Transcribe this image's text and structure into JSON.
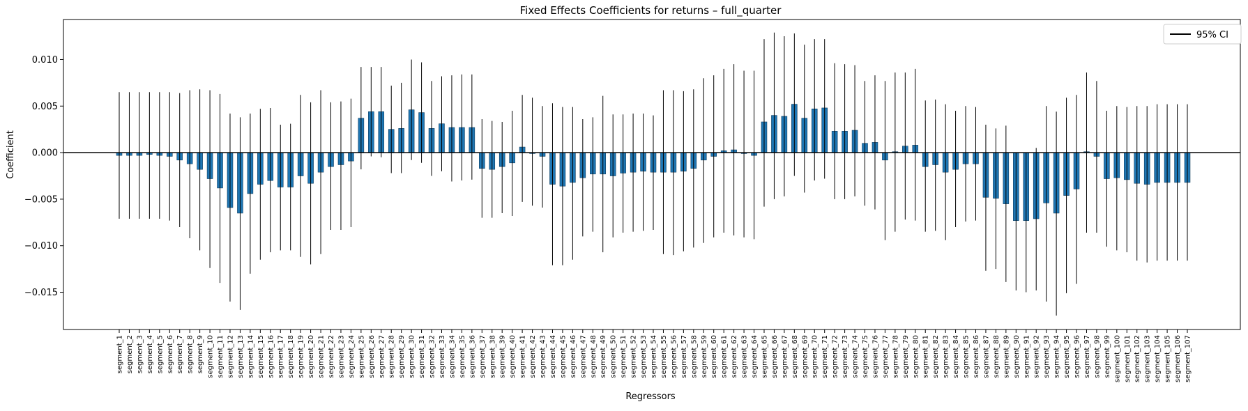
{
  "chart_data": {
    "type": "bar",
    "title": "Fixed Effects Coefficients for returns – full_quarter",
    "xlabel": "Regressors",
    "ylabel": "Coefficient",
    "ylim": [
      -0.019,
      0.0143
    ],
    "yticks": [
      -0.015,
      -0.01,
      -0.005,
      0.0,
      0.005,
      0.01
    ],
    "ytick_labels": [
      "−0.015",
      "−0.010",
      "−0.005",
      "0.000",
      "0.005",
      "0.010"
    ],
    "bar_color": "#1f77b4",
    "errorbar_color": "#000000",
    "zero_line": true,
    "legend": {
      "position": "top-right",
      "entries": [
        "95% CI"
      ]
    },
    "categories": [
      "segment_1",
      "segment_2",
      "segment_3",
      "segment_4",
      "segment_5",
      "segment_6",
      "segment_7",
      "segment_8",
      "segment_9",
      "segment_10",
      "segment_11",
      "segment_12",
      "segment_13",
      "segment_14",
      "segment_15",
      "segment_16",
      "segment_17",
      "segment_18",
      "segment_19",
      "segment_20",
      "segment_21",
      "segment_22",
      "segment_23",
      "segment_24",
      "segment_25",
      "segment_26",
      "segment_27",
      "segment_28",
      "segment_29",
      "segment_30",
      "segment_31",
      "segment_32",
      "segment_33",
      "segment_34",
      "segment_35",
      "segment_36",
      "segment_37",
      "segment_38",
      "segment_39",
      "segment_40",
      "segment_41",
      "segment_42",
      "segment_43",
      "segment_44",
      "segment_45",
      "segment_46",
      "segment_47",
      "segment_48",
      "segment_49",
      "segment_50",
      "segment_51",
      "segment_52",
      "segment_53",
      "segment_54",
      "segment_55",
      "segment_56",
      "segment_57",
      "segment_58",
      "segment_59",
      "segment_60",
      "segment_61",
      "segment_62",
      "segment_63",
      "segment_64",
      "segment_65",
      "segment_66",
      "segment_67",
      "segment_68",
      "segment_69",
      "segment_70",
      "segment_71",
      "segment_72",
      "segment_73",
      "segment_74",
      "segment_75",
      "segment_76",
      "segment_77",
      "segment_78",
      "segment_79",
      "segment_80",
      "segment_81",
      "segment_82",
      "segment_83",
      "segment_84",
      "segment_85",
      "segment_86",
      "segment_87",
      "segment_88",
      "segment_89",
      "segment_90",
      "segment_91",
      "segment_92",
      "segment_93",
      "segment_94",
      "segment_95",
      "segment_96",
      "segment_97",
      "segment_98",
      "segment_99",
      "segment_100",
      "segment_101",
      "segment_102",
      "segment_103",
      "segment_104",
      "segment_105",
      "segment_106",
      "segment_107"
    ],
    "values": [
      -0.0003,
      -0.0003,
      -0.0003,
      -0.0002,
      -0.0003,
      -0.0004,
      -0.0008,
      -0.0012,
      -0.0018,
      -0.0028,
      -0.0038,
      -0.0059,
      -0.0065,
      -0.0044,
      -0.0034,
      -0.003,
      -0.0037,
      -0.0037,
      -0.0025,
      -0.0033,
      -0.0021,
      -0.0015,
      -0.0013,
      -0.0009,
      0.0037,
      0.0044,
      0.0044,
      0.0025,
      0.0026,
      0.0046,
      0.0043,
      0.0026,
      0.0031,
      0.0027,
      0.0027,
      0.0027,
      -0.0017,
      -0.0018,
      -0.0015,
      -0.0011,
      0.0006,
      -0.0001,
      -0.0004,
      -0.0034,
      -0.0036,
      -0.0032,
      -0.0027,
      -0.0023,
      -0.0023,
      -0.0025,
      -0.0022,
      -0.0021,
      -0.002,
      -0.0021,
      -0.0021,
      -0.0021,
      -0.002,
      -0.0017,
      -0.0008,
      -0.0004,
      0.0002,
      0.0003,
      -0.0001,
      -0.0003,
      0.0033,
      0.004,
      0.0039,
      0.0052,
      0.0037,
      0.0047,
      0.0048,
      0.0023,
      0.0023,
      0.0024,
      0.001,
      0.0011,
      -0.0008,
      0.0001,
      0.0007,
      0.0008,
      -0.0015,
      -0.0013,
      -0.0021,
      -0.0018,
      -0.0012,
      -0.0012,
      -0.0048,
      -0.0049,
      -0.0055,
      -0.0073,
      -0.0073,
      -0.0071,
      -0.0054,
      -0.0065,
      -0.0046,
      -0.0039,
      0.0001,
      -0.0004,
      -0.0028,
      -0.0027,
      -0.0029,
      -0.0033,
      -0.0034,
      -0.0032,
      -0.0032,
      -0.0032,
      -0.0032
    ],
    "ci_lower": [
      -0.0071,
      -0.0071,
      -0.0071,
      -0.0071,
      -0.0071,
      -0.0073,
      -0.008,
      -0.0092,
      -0.0105,
      -0.0124,
      -0.014,
      -0.016,
      -0.0169,
      -0.013,
      -0.0115,
      -0.0107,
      -0.0105,
      -0.0105,
      -0.0112,
      -0.012,
      -0.0109,
      -0.0083,
      -0.0083,
      -0.008,
      -0.0018,
      -0.0004,
      -0.0005,
      -0.0022,
      -0.0022,
      -0.0008,
      -0.0011,
      -0.0025,
      -0.002,
      -0.0031,
      -0.003,
      -0.0029,
      -0.007,
      -0.007,
      -0.0065,
      -0.0068,
      -0.0053,
      -0.0057,
      -0.0059,
      -0.0121,
      -0.0121,
      -0.0115,
      -0.009,
      -0.0085,
      -0.0107,
      -0.0091,
      -0.0086,
      -0.0085,
      -0.0084,
      -0.0083,
      -0.0109,
      -0.011,
      -0.0106,
      -0.0102,
      -0.0097,
      -0.0091,
      -0.0086,
      -0.0089,
      -0.0091,
      -0.0093,
      -0.0058,
      -0.005,
      -0.0047,
      -0.0025,
      -0.0043,
      -0.003,
      -0.0028,
      -0.005,
      -0.005,
      -0.0047,
      -0.0057,
      -0.0061,
      -0.0094,
      -0.0085,
      -0.0072,
      -0.0073,
      -0.0085,
      -0.0084,
      -0.0094,
      -0.008,
      -0.0074,
      -0.0073,
      -0.0127,
      -0.0125,
      -0.0139,
      -0.0148,
      -0.015,
      -0.0148,
      -0.016,
      -0.0175,
      -0.0151,
      -0.0141,
      -0.0086,
      -0.0086,
      -0.0101,
      -0.0105,
      -0.0107,
      -0.0116,
      -0.0118,
      -0.0116,
      -0.0116,
      -0.0116,
      -0.0116
    ],
    "ci_upper": [
      0.0065,
      0.0065,
      0.0065,
      0.0065,
      0.0065,
      0.0065,
      0.0064,
      0.0067,
      0.0068,
      0.0067,
      0.0063,
      0.0042,
      0.0038,
      0.0042,
      0.0047,
      0.0048,
      0.003,
      0.0031,
      0.0062,
      0.0054,
      0.0067,
      0.0054,
      0.0055,
      0.0058,
      0.0092,
      0.0092,
      0.0092,
      0.0072,
      0.0075,
      0.01,
      0.0097,
      0.0077,
      0.0082,
      0.0083,
      0.0084,
      0.0084,
      0.0036,
      0.0034,
      0.0033,
      0.0045,
      0.0062,
      0.0059,
      0.005,
      0.0053,
      0.0049,
      0.0049,
      0.0036,
      0.0038,
      0.0061,
      0.0041,
      0.0041,
      0.0042,
      0.0042,
      0.004,
      0.0067,
      0.0067,
      0.0066,
      0.0068,
      0.008,
      0.0083,
      0.009,
      0.0095,
      0.0088,
      0.0088,
      0.0122,
      0.0129,
      0.0125,
      0.0128,
      0.0116,
      0.0122,
      0.0122,
      0.0096,
      0.0095,
      0.0094,
      0.0077,
      0.0083,
      0.0077,
      0.0086,
      0.0086,
      0.009,
      0.0056,
      0.0057,
      0.0052,
      0.0045,
      0.005,
      0.0049,
      0.003,
      0.0026,
      0.0029,
      0.0,
      0.0,
      0.0005,
      0.005,
      0.0044,
      0.0059,
      0.0062,
      0.0086,
      0.0077,
      0.0045,
      0.005,
      0.0049,
      0.005,
      0.005,
      0.0052,
      0.0052,
      0.0052,
      0.0052
    ]
  }
}
